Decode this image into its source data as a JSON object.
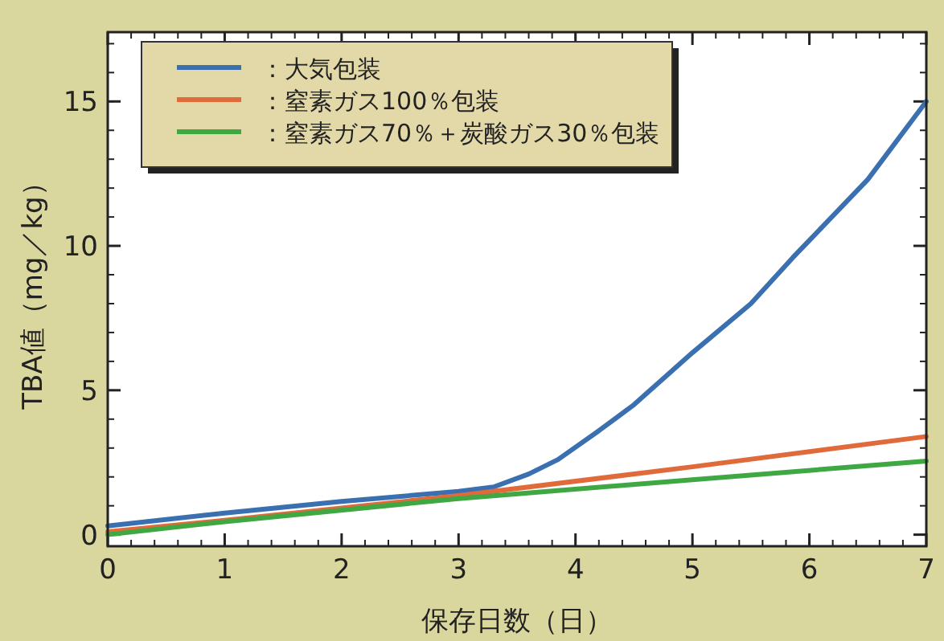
{
  "chart_data": {
    "type": "line",
    "xlabel": "保存日数（日）",
    "ylabel": "TBA値（mg／kg）",
    "xlim": [
      0,
      7
    ],
    "ylim": [
      -0.4,
      17.4
    ],
    "xticks": [
      0,
      1,
      2,
      3,
      4,
      5,
      6,
      7
    ],
    "yticks": [
      0,
      5,
      10,
      15
    ],
    "legend": "top left",
    "grid": false,
    "series": [
      {
        "name": "：大気包装",
        "color": "#3a6fb0",
        "x": [
          0,
          1,
          2,
          3,
          3.3,
          3.6,
          3.85,
          4.2,
          4.5,
          5,
          5.5,
          5.86,
          6.5,
          7
        ],
        "values": [
          0.3,
          0.75,
          1.15,
          1.5,
          1.65,
          2.1,
          2.6,
          3.6,
          4.5,
          6.3,
          8.0,
          9.6,
          12.3,
          15
        ]
      },
      {
        "name": "：窒素ガス100％包装",
        "color": "#e06a3a",
        "x": [
          0,
          1,
          3,
          5,
          7
        ],
        "values": [
          0.1,
          0.5,
          1.35,
          2.35,
          3.4
        ]
      },
      {
        "name": "：窒素ガス70％＋炭酸ガス30％包装",
        "color": "#3fa843",
        "x": [
          0,
          1,
          3,
          5,
          7
        ],
        "values": [
          0,
          0.45,
          1.25,
          1.9,
          2.55
        ]
      }
    ]
  }
}
